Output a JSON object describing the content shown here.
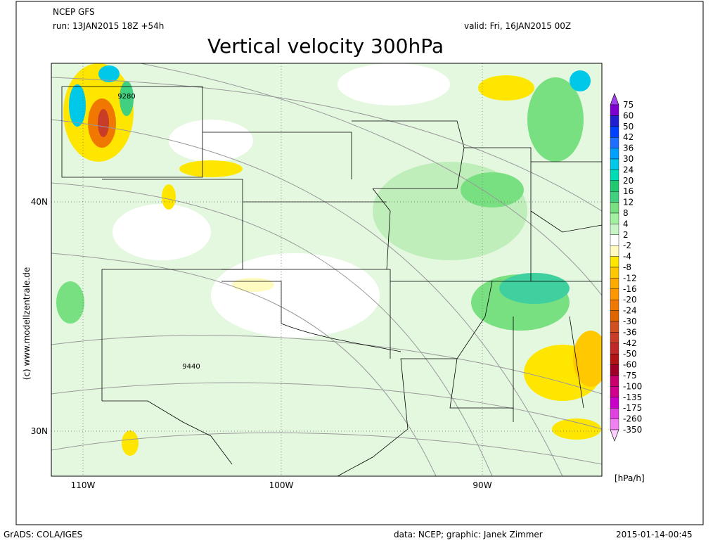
{
  "header": {
    "model": "NCEP GFS",
    "run": "run: 13JAN2015 18Z +54h",
    "valid": "valid: Fri, 16JAN2015 00Z",
    "title": "Vertical velocity 300hPa"
  },
  "map": {
    "lat_labels": [
      "40N",
      "30N"
    ],
    "lon_labels": [
      "110W",
      "100W",
      "90W"
    ],
    "contour_labels": [
      "9280",
      "9440"
    ],
    "credit": "(c) www.modellzentrale.de"
  },
  "colorbar": {
    "labels": [
      "75",
      "60",
      "50",
      "42",
      "36",
      "30",
      "24",
      "20",
      "16",
      "12",
      "8",
      "4",
      "2",
      "-2",
      "-4",
      "-8",
      "-12",
      "-16",
      "-20",
      "-24",
      "-30",
      "-36",
      "-42",
      "-50",
      "-60",
      "-75",
      "-100",
      "-135",
      "-175",
      "-260",
      "-350"
    ],
    "colors": [
      "#a040f0",
      "#7d00d0",
      "#2020d0",
      "#0040ff",
      "#1e6eff",
      "#00a0ff",
      "#00c8e8",
      "#00dcb4",
      "#20c870",
      "#40d080",
      "#78e080",
      "#a0f0a0",
      "#c8f5c8",
      "#ffffff",
      "#fffac0",
      "#ffe600",
      "#ffc800",
      "#ffaa00",
      "#ff9600",
      "#f07800",
      "#e06400",
      "#d05020",
      "#c83c28",
      "#c02828",
      "#b01414",
      "#a00028",
      "#c8006e",
      "#d0008c",
      "#c800c8",
      "#e040e0",
      "#f080f0",
      "#ffd0ff"
    ],
    "units": "[hPa/h]"
  },
  "footer": {
    "left": "GrADS: COLA/IGES",
    "center": "data: NCEP; graphic: Janek Zimmer",
    "right": "2015-01-14-00:45"
  }
}
